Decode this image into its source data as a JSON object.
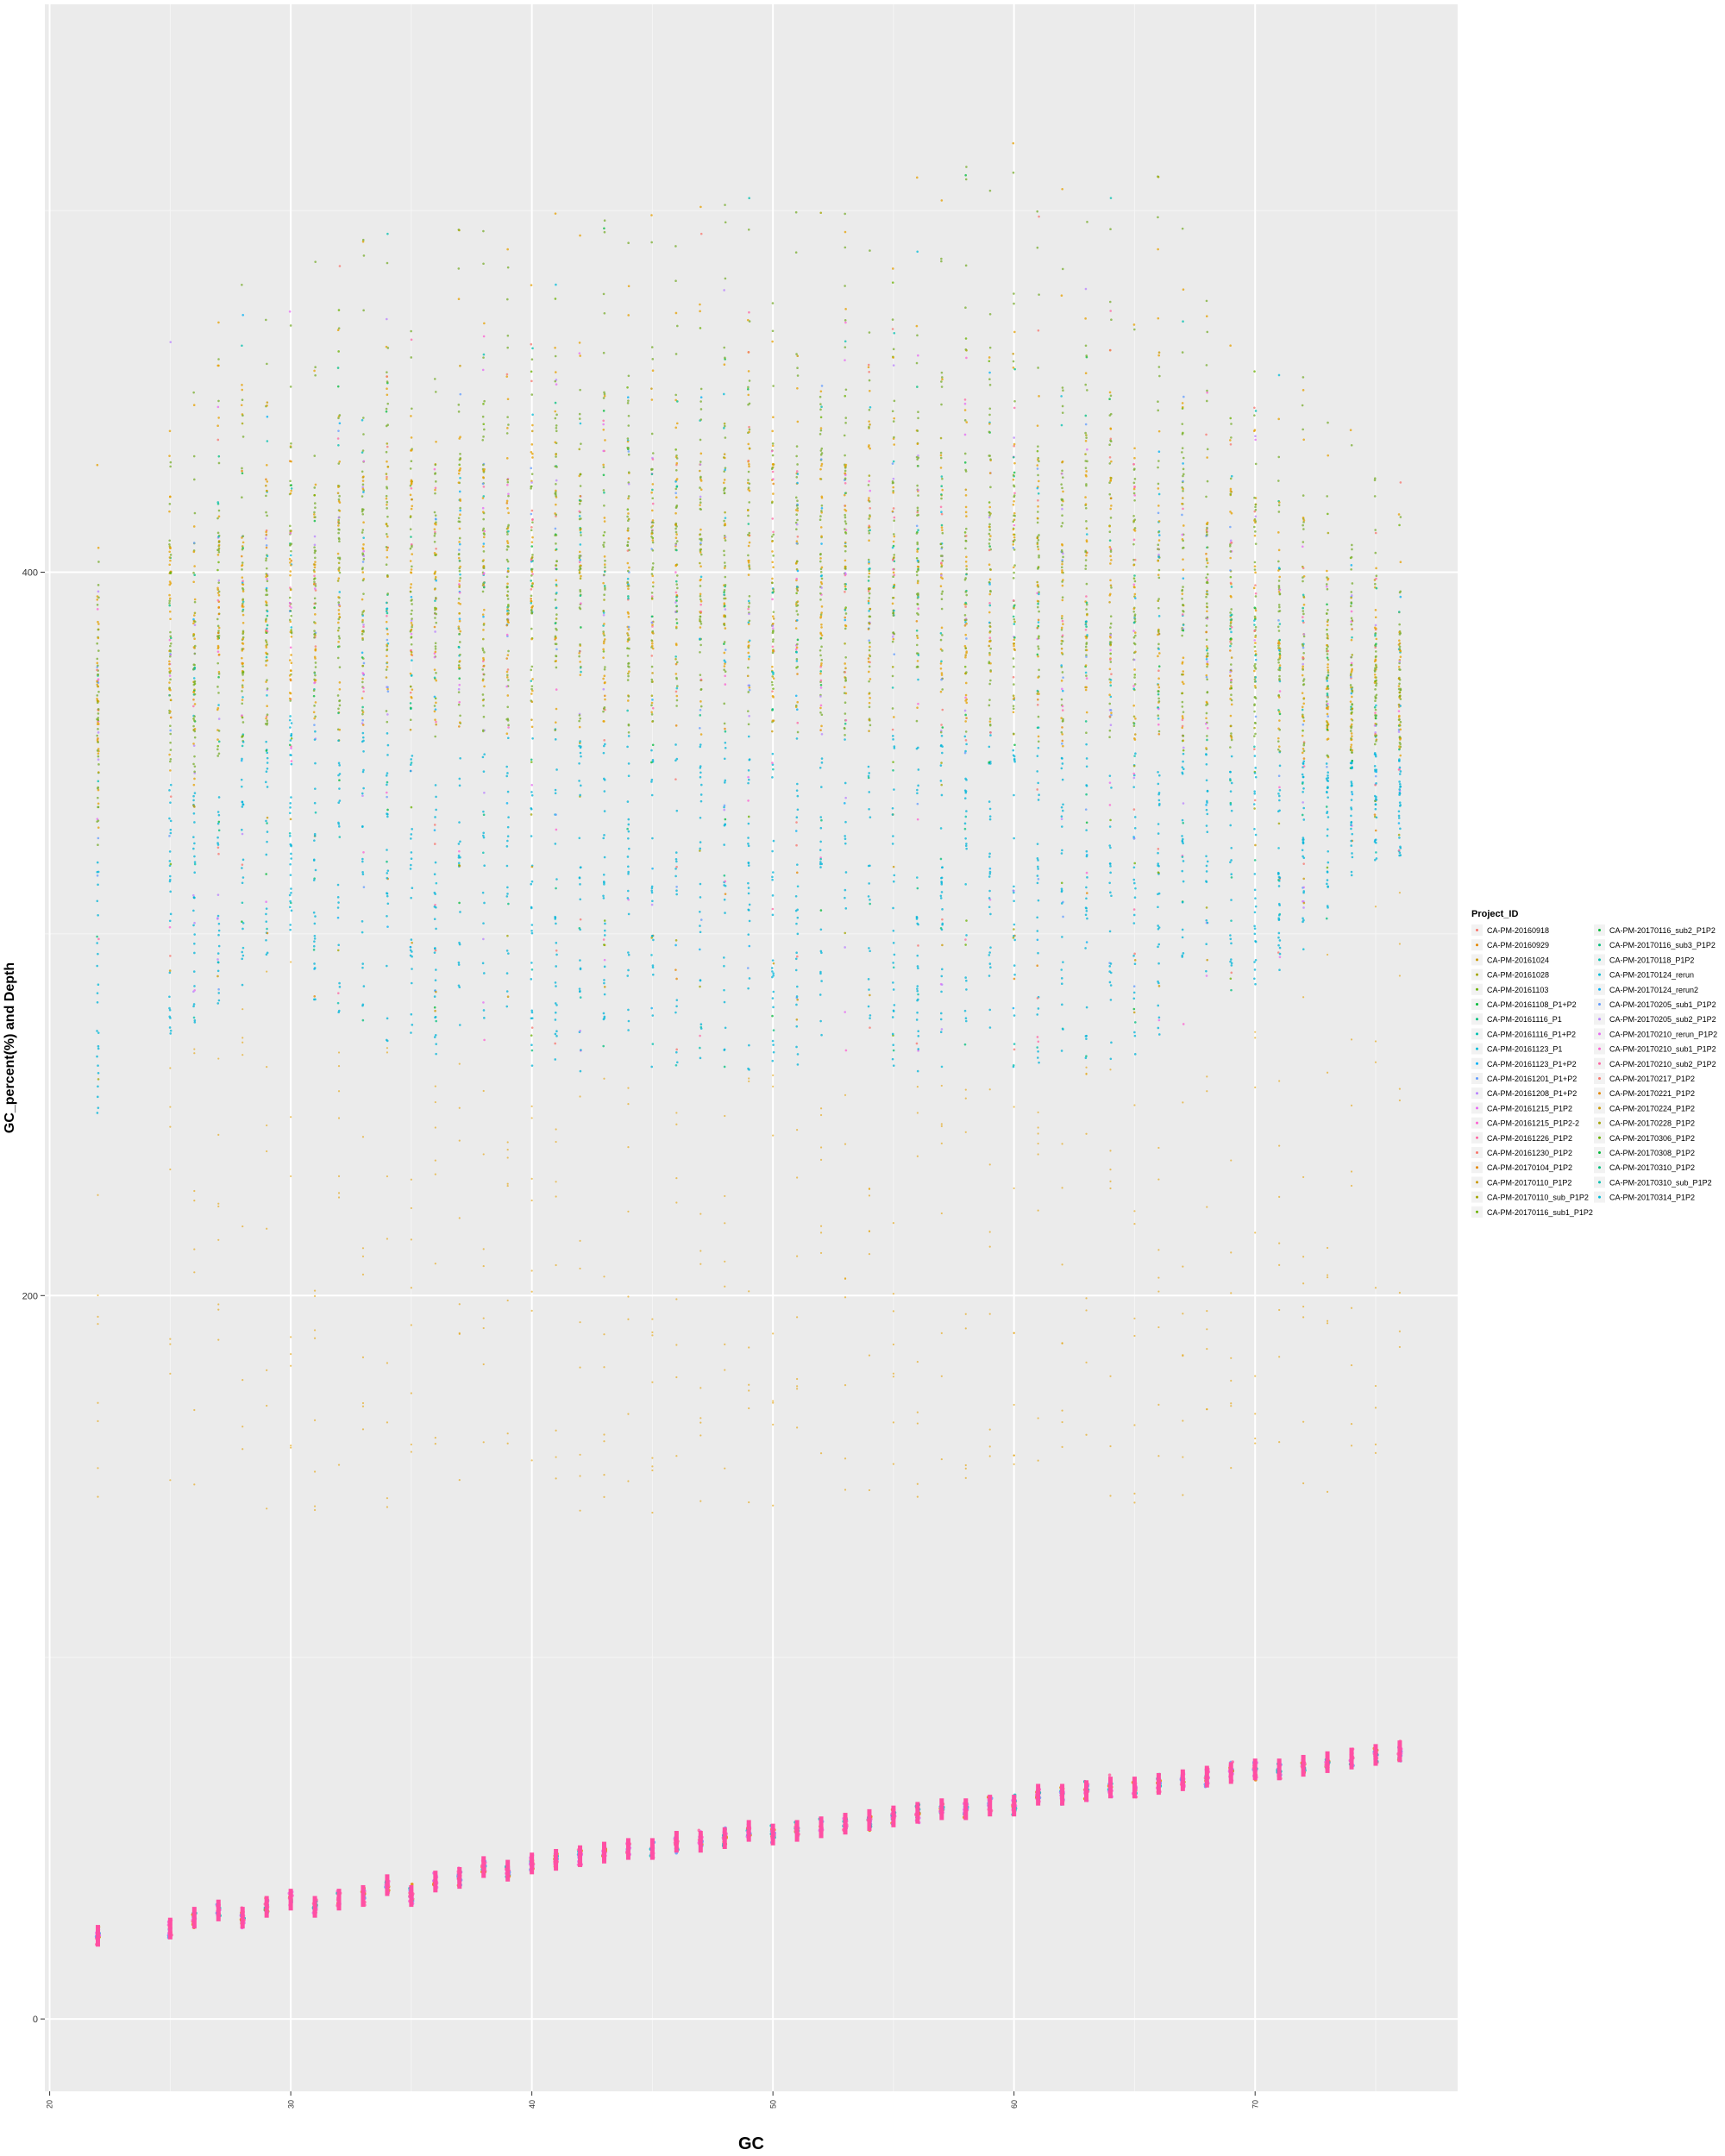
{
  "chart_data": {
    "type": "scatter",
    "title": "",
    "xlabel": "GC",
    "ylabel": "GC_percent(%) and Depth",
    "xlim": [
      19.8,
      78.4
    ],
    "ylim": [
      -20,
      557
    ],
    "x_ticks": [
      20,
      30,
      40,
      50,
      60,
      70
    ],
    "y_ticks": [
      0,
      200,
      400
    ],
    "grid": true,
    "legend": {
      "title": "Project_ID",
      "placement": "right",
      "entries": [
        "CA-PM-20160918",
        "CA-PM-20160929",
        "CA-PM-20161024",
        "CA-PM-20161028",
        "CA-PM-20161103",
        "CA-PM-20161108_P1+P2",
        "CA-PM-20161116_P1",
        "CA-PM-20161116_P1+P2",
        "CA-PM-20161123_P1",
        "CA-PM-20161123_P1+P2",
        "CA-PM-20161201_P1+P2",
        "CA-PM-20161208_P1+P2",
        "CA-PM-20161215_P1P2",
        "CA-PM-20161215_P1P2-2",
        "CA-PM-20161226_P1P2",
        "CA-PM-20161230_P1P2",
        "CA-PM-20170104_P1P2",
        "CA-PM-20170110_P1P2",
        "CA-PM-20170110_sub_P1P2",
        "CA-PM-20170116_sub1_P1P2",
        "CA-PM-20170116_sub2_P1P2",
        "CA-PM-20170116_sub3_P1P2",
        "CA-PM-20170118_P1P2",
        "CA-PM-20170124_rerun",
        "CA-PM-20170124_rerun2",
        "CA-PM-20170205_sub1_P1P2",
        "CA-PM-20170205_sub2_P1P2",
        "CA-PM-20170210_rerun_P1P2",
        "CA-PM-20170210_sub1_P1P2",
        "CA-PM-20170210_sub2_P1P2",
        "CA-PM-20170217_P1P2",
        "CA-PM-20170221_P1P2",
        "CA-PM-20170224_P1P2",
        "CA-PM-20170228_P1P2",
        "CA-PM-20170306_P1P2",
        "CA-PM-20170308_P1P2",
        "CA-PM-20170310_P1P2",
        "CA-PM-20170310_sub_P1P2",
        "CA-PM-20170314_P1P2"
      ]
    },
    "series": [
      {
        "group": "GC_percent",
        "x": [
          22,
          25,
          26,
          27,
          28,
          29,
          30,
          31,
          32,
          33,
          34,
          35,
          36,
          37,
          38,
          39,
          40,
          41,
          42,
          43,
          44,
          45,
          46,
          47,
          48,
          49,
          50,
          51,
          52,
          53,
          54,
          55,
          56,
          57,
          58,
          59,
          60,
          61,
          62,
          63,
          64,
          65,
          66,
          67,
          68,
          69,
          70,
          71,
          72,
          73,
          74,
          75,
          76
        ],
        "y": [
          23,
          25,
          28,
          30,
          28,
          31,
          33,
          31,
          33,
          34,
          37,
          34,
          38,
          39,
          42,
          41,
          43,
          44,
          45,
          46,
          47,
          47,
          49,
          49,
          50,
          52,
          51,
          52,
          53,
          54,
          55,
          56,
          57,
          58,
          58,
          59,
          59,
          62,
          62,
          63,
          64,
          64,
          65,
          66,
          67,
          68,
          69,
          69,
          70,
          71,
          72,
          73,
          74
        ]
      },
      {
        "group": "Depth",
        "x": [
          22,
          25,
          26,
          27,
          28,
          29,
          30,
          31,
          32,
          33,
          34,
          35,
          36,
          37,
          38,
          39,
          40,
          41,
          42,
          43,
          44,
          45,
          46,
          47,
          48,
          49,
          50,
          51,
          52,
          53,
          54,
          55,
          56,
          57,
          58,
          59,
          60,
          61,
          62,
          63,
          64,
          65,
          66,
          67,
          68,
          69,
          70,
          71,
          72,
          73,
          74,
          75,
          76
        ],
        "y_max": [
          430,
          470,
          460,
          475,
          480,
          485,
          490,
          495,
          495,
          495,
          495,
          495,
          495,
          500,
          500,
          500,
          500,
          500,
          500,
          500,
          500,
          500,
          500,
          505,
          505,
          505,
          505,
          505,
          505,
          505,
          505,
          505,
          510,
          510,
          515,
          515,
          520,
          510,
          510,
          505,
          505,
          510,
          515,
          510,
          480,
          480,
          475,
          470,
          455,
          445,
          440,
          430,
          430
        ],
        "y_median": [
          360,
          380,
          375,
          385,
          390,
          392,
          395,
          398,
          400,
          400,
          402,
          402,
          402,
          405,
          405,
          405,
          405,
          405,
          405,
          405,
          405,
          405,
          405,
          405,
          405,
          405,
          405,
          405,
          405,
          405,
          405,
          405,
          405,
          405,
          405,
          405,
          405,
          400,
          400,
          400,
          400,
          398,
          395,
          395,
          392,
          390,
          385,
          380,
          378,
          375,
          370,
          368,
          365
        ],
        "y_min": [
          250,
          270,
          275,
          280,
          285,
          290,
          295,
          280,
          275,
          275,
          270,
          270,
          265,
          265,
          265,
          262,
          262,
          262,
          262,
          262,
          262,
          262,
          262,
          262,
          262,
          262,
          262,
          262,
          262,
          262,
          262,
          262,
          262,
          262,
          262,
          262,
          262,
          262,
          262,
          265,
          265,
          265,
          268,
          270,
          275,
          280,
          285,
          290,
          295,
          300,
          310,
          320,
          320
        ]
      }
    ]
  }
}
